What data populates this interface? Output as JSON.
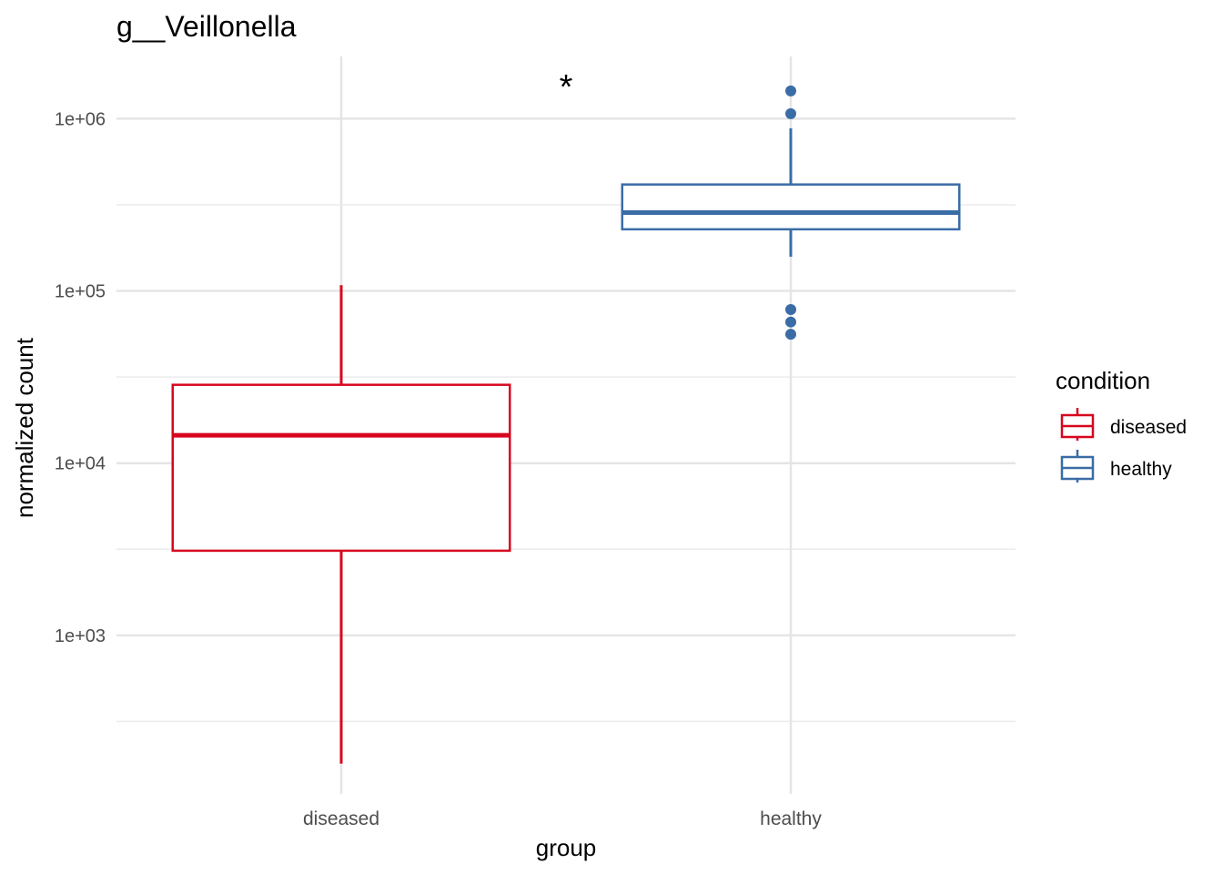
{
  "chart_data": {
    "type": "boxplot",
    "title": "g__Veillonella",
    "xlabel": "group",
    "ylabel": "normalized count",
    "y_scale": "log10",
    "ylim": [
      120,
      2300000
    ],
    "y_ticks": [
      1000,
      10000,
      100000,
      1000000
    ],
    "y_tick_labels": [
      "1e+03",
      "1e+04",
      "1e+05",
      "1e+06"
    ],
    "categories": [
      "diseased",
      "healthy"
    ],
    "annotation": "*",
    "grid": true,
    "legend": {
      "title": "condition",
      "position": "right",
      "entries": [
        "diseased",
        "healthy"
      ]
    },
    "series": [
      {
        "name": "diseased",
        "color": "#D7061E",
        "whisker_low": 180,
        "q1": 3100,
        "median": 14500,
        "q3": 28500,
        "whisker_high": 108000,
        "outliers": []
      },
      {
        "name": "healthy",
        "color": "#3A6CA6",
        "whisker_low": 158000,
        "q1": 228000,
        "median": 285000,
        "q3": 415000,
        "whisker_high": 880000,
        "outliers": [
          1450000,
          1070000,
          78000,
          66000,
          56000
        ]
      }
    ]
  }
}
